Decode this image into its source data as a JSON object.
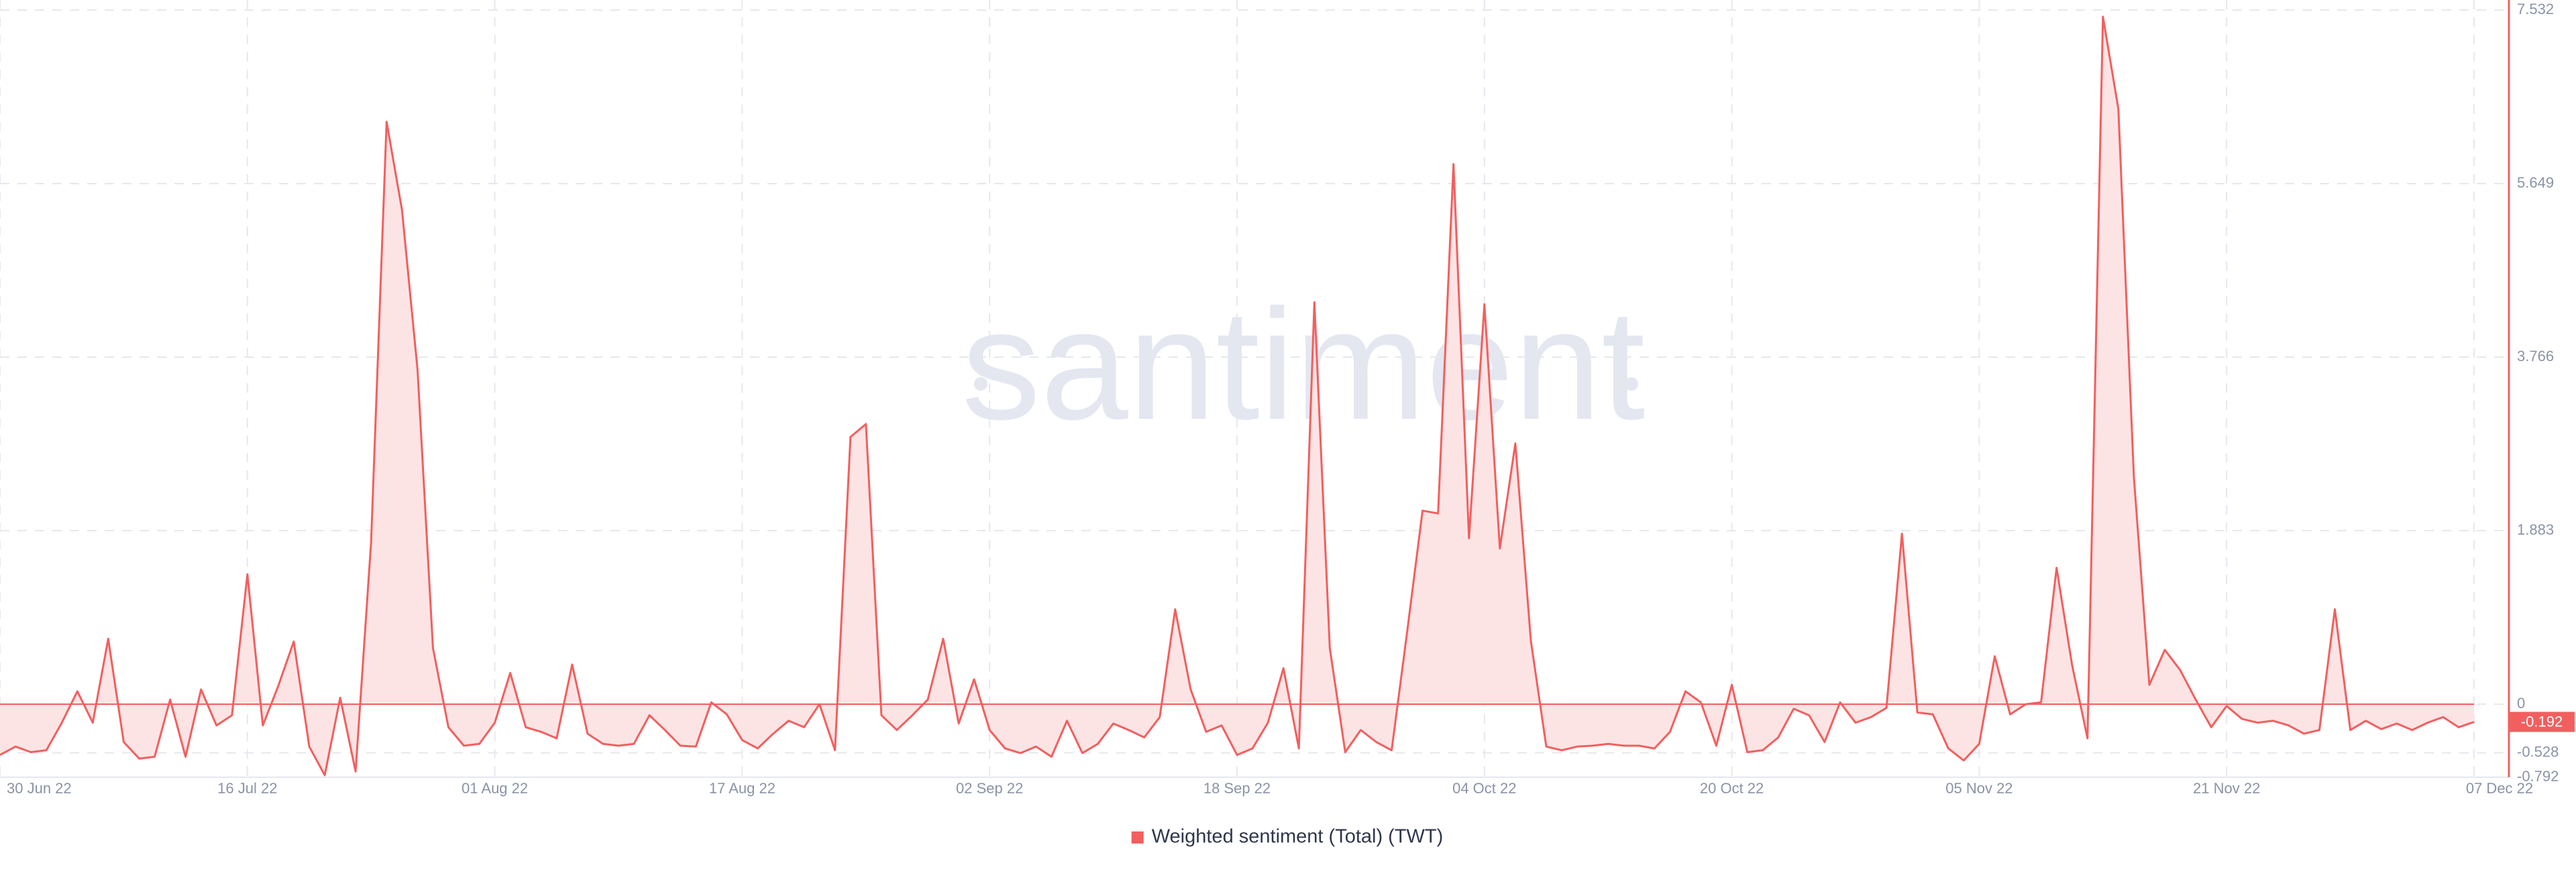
{
  "chart_data": {
    "type": "area",
    "watermark": "santiment",
    "x": [
      "2022-06-30",
      "2022-07-01",
      "2022-07-02",
      "2022-07-03",
      "2022-07-04",
      "2022-07-05",
      "2022-07-06",
      "2022-07-07",
      "2022-07-08",
      "2022-07-09",
      "2022-07-10",
      "2022-07-11",
      "2022-07-12",
      "2022-07-13",
      "2022-07-14",
      "2022-07-15",
      "2022-07-16",
      "2022-07-17",
      "2022-07-18",
      "2022-07-19",
      "2022-07-20",
      "2022-07-21",
      "2022-07-22",
      "2022-07-23",
      "2022-07-24",
      "2022-07-25",
      "2022-07-26",
      "2022-07-27",
      "2022-07-28",
      "2022-07-29",
      "2022-07-30",
      "2022-07-31",
      "2022-08-01",
      "2022-08-02",
      "2022-08-03",
      "2022-08-04",
      "2022-08-05",
      "2022-08-06",
      "2022-08-07",
      "2022-08-08",
      "2022-08-09",
      "2022-08-10",
      "2022-08-11",
      "2022-08-12",
      "2022-08-13",
      "2022-08-14",
      "2022-08-15",
      "2022-08-16",
      "2022-08-17",
      "2022-08-18",
      "2022-08-19",
      "2022-08-20",
      "2022-08-21",
      "2022-08-22",
      "2022-08-23",
      "2022-08-24",
      "2022-08-25",
      "2022-08-26",
      "2022-08-27",
      "2022-08-28",
      "2022-08-29",
      "2022-08-30",
      "2022-08-31",
      "2022-09-01",
      "2022-09-02",
      "2022-09-03",
      "2022-09-04",
      "2022-09-05",
      "2022-09-06",
      "2022-09-07",
      "2022-09-08",
      "2022-09-09",
      "2022-09-10",
      "2022-09-11",
      "2022-09-12",
      "2022-09-13",
      "2022-09-14",
      "2022-09-15",
      "2022-09-16",
      "2022-09-17",
      "2022-09-18",
      "2022-09-19",
      "2022-09-20",
      "2022-09-21",
      "2022-09-22",
      "2022-09-23",
      "2022-09-24",
      "2022-09-25",
      "2022-09-26",
      "2022-09-27",
      "2022-09-28",
      "2022-09-29",
      "2022-09-30",
      "2022-10-01",
      "2022-10-02",
      "2022-10-03",
      "2022-10-04",
      "2022-10-05",
      "2022-10-06",
      "2022-10-07",
      "2022-10-08",
      "2022-10-09",
      "2022-10-10",
      "2022-10-11",
      "2022-10-12",
      "2022-10-13",
      "2022-10-14",
      "2022-10-15",
      "2022-10-16",
      "2022-10-17",
      "2022-10-18",
      "2022-10-19",
      "2022-10-20",
      "2022-10-21",
      "2022-10-22",
      "2022-10-23",
      "2022-10-24",
      "2022-10-25",
      "2022-10-26",
      "2022-10-27",
      "2022-10-28",
      "2022-10-29",
      "2022-10-30",
      "2022-10-31",
      "2022-11-01",
      "2022-11-02",
      "2022-11-03",
      "2022-11-04",
      "2022-11-05",
      "2022-11-06",
      "2022-11-07",
      "2022-11-08",
      "2022-11-09",
      "2022-11-10",
      "2022-11-11",
      "2022-11-12",
      "2022-11-13",
      "2022-11-14",
      "2022-11-15",
      "2022-11-16",
      "2022-11-17",
      "2022-11-18",
      "2022-11-19",
      "2022-11-20",
      "2022-11-21",
      "2022-11-22",
      "2022-11-23",
      "2022-11-24",
      "2022-11-25",
      "2022-11-26",
      "2022-11-27",
      "2022-11-28",
      "2022-11-29",
      "2022-11-30",
      "2022-12-01",
      "2022-12-02",
      "2022-12-03",
      "2022-12-04",
      "2022-12-05",
      "2022-12-06",
      "2022-12-07"
    ],
    "series": [
      {
        "name": "Weighted sentiment (Total) (TWT)",
        "color": "#f25f5f",
        "fill": "#fde4e4",
        "values": [
          -0.55,
          -0.46,
          -0.52,
          -0.5,
          -0.2,
          0.14,
          -0.2,
          0.71,
          -0.41,
          -0.59,
          -0.57,
          0.05,
          -0.57,
          0.16,
          -0.23,
          -0.12,
          1.41,
          -0.23,
          0.2,
          0.68,
          -0.46,
          -0.77,
          0.07,
          -0.73,
          1.76,
          6.32,
          5.36,
          3.63,
          0.61,
          -0.25,
          -0.45,
          -0.43,
          -0.2,
          0.34,
          -0.25,
          -0.3,
          -0.37,
          0.43,
          -0.32,
          -0.43,
          -0.45,
          -0.43,
          -0.12,
          -0.28,
          -0.45,
          -0.46,
          0.02,
          -0.11,
          -0.39,
          -0.48,
          -0.32,
          -0.18,
          -0.25,
          0,
          -0.5,
          2.9,
          3.04,
          -0.12,
          -0.28,
          -0.12,
          0.05,
          0.71,
          -0.21,
          0.27,
          -0.28,
          -0.48,
          -0.53,
          -0.46,
          -0.57,
          -0.18,
          -0.53,
          -0.43,
          -0.21,
          -0.28,
          -0.36,
          -0.14,
          1.03,
          0.16,
          -0.3,
          -0.23,
          -0.55,
          -0.48,
          -0.2,
          0.39,
          -0.48,
          4.36,
          0.61,
          -0.52,
          -0.28,
          -0.41,
          -0.5,
          0.78,
          2.1,
          2.07,
          5.86,
          1.8,
          4.34,
          1.69,
          2.83,
          0.69,
          -0.46,
          -0.5,
          -0.46,
          -0.45,
          -0.43,
          -0.45,
          -0.45,
          -0.48,
          -0.3,
          0.14,
          0.02,
          -0.45,
          0.21,
          -0.52,
          -0.5,
          -0.36,
          -0.05,
          -0.12,
          -0.41,
          0.02,
          -0.2,
          -0.14,
          -0.04,
          1.85,
          -0.09,
          -0.11,
          -0.48,
          -0.61,
          -0.43,
          0.52,
          -0.11,
          0,
          0.02,
          1.48,
          0.43,
          -0.37,
          7.46,
          6.46,
          2.47,
          0.21,
          0.59,
          0.37,
          0.05,
          -0.25,
          -0.02,
          -0.16,
          -0.2,
          -0.18,
          -0.23,
          -0.32,
          -0.28,
          1.03,
          -0.28,
          -0.18,
          -0.27,
          -0.21,
          -0.28,
          -0.2,
          -0.14,
          -0.25,
          -0.192
        ]
      }
    ],
    "current_value": -0.192,
    "xlim": [
      "2022-06-30",
      "2022-12-07"
    ],
    "xticks": [
      {
        "value": "2022-06-30",
        "label": "30 Jun 22"
      },
      {
        "value": "2022-07-16",
        "label": "16 Jul 22"
      },
      {
        "value": "2022-08-01",
        "label": "01 Aug 22"
      },
      {
        "value": "2022-08-17",
        "label": "17 Aug 22"
      },
      {
        "value": "2022-09-02",
        "label": "02 Sep 22"
      },
      {
        "value": "2022-09-18",
        "label": "18 Sep 22"
      },
      {
        "value": "2022-10-04",
        "label": "04 Oct 22"
      },
      {
        "value": "2022-10-20",
        "label": "20 Oct 22"
      },
      {
        "value": "2022-11-05",
        "label": "05 Nov 22"
      },
      {
        "value": "2022-11-21",
        "label": "21 Nov 22"
      },
      {
        "value": "2022-12-07",
        "label": "07 Dec 22"
      }
    ],
    "ylim": [
      -0.792,
      7.532
    ],
    "yticks": [
      -0.792,
      -0.528,
      0,
      1.883,
      3.766,
      5.649,
      7.532
    ],
    "grid": true,
    "legend": "bottom"
  }
}
